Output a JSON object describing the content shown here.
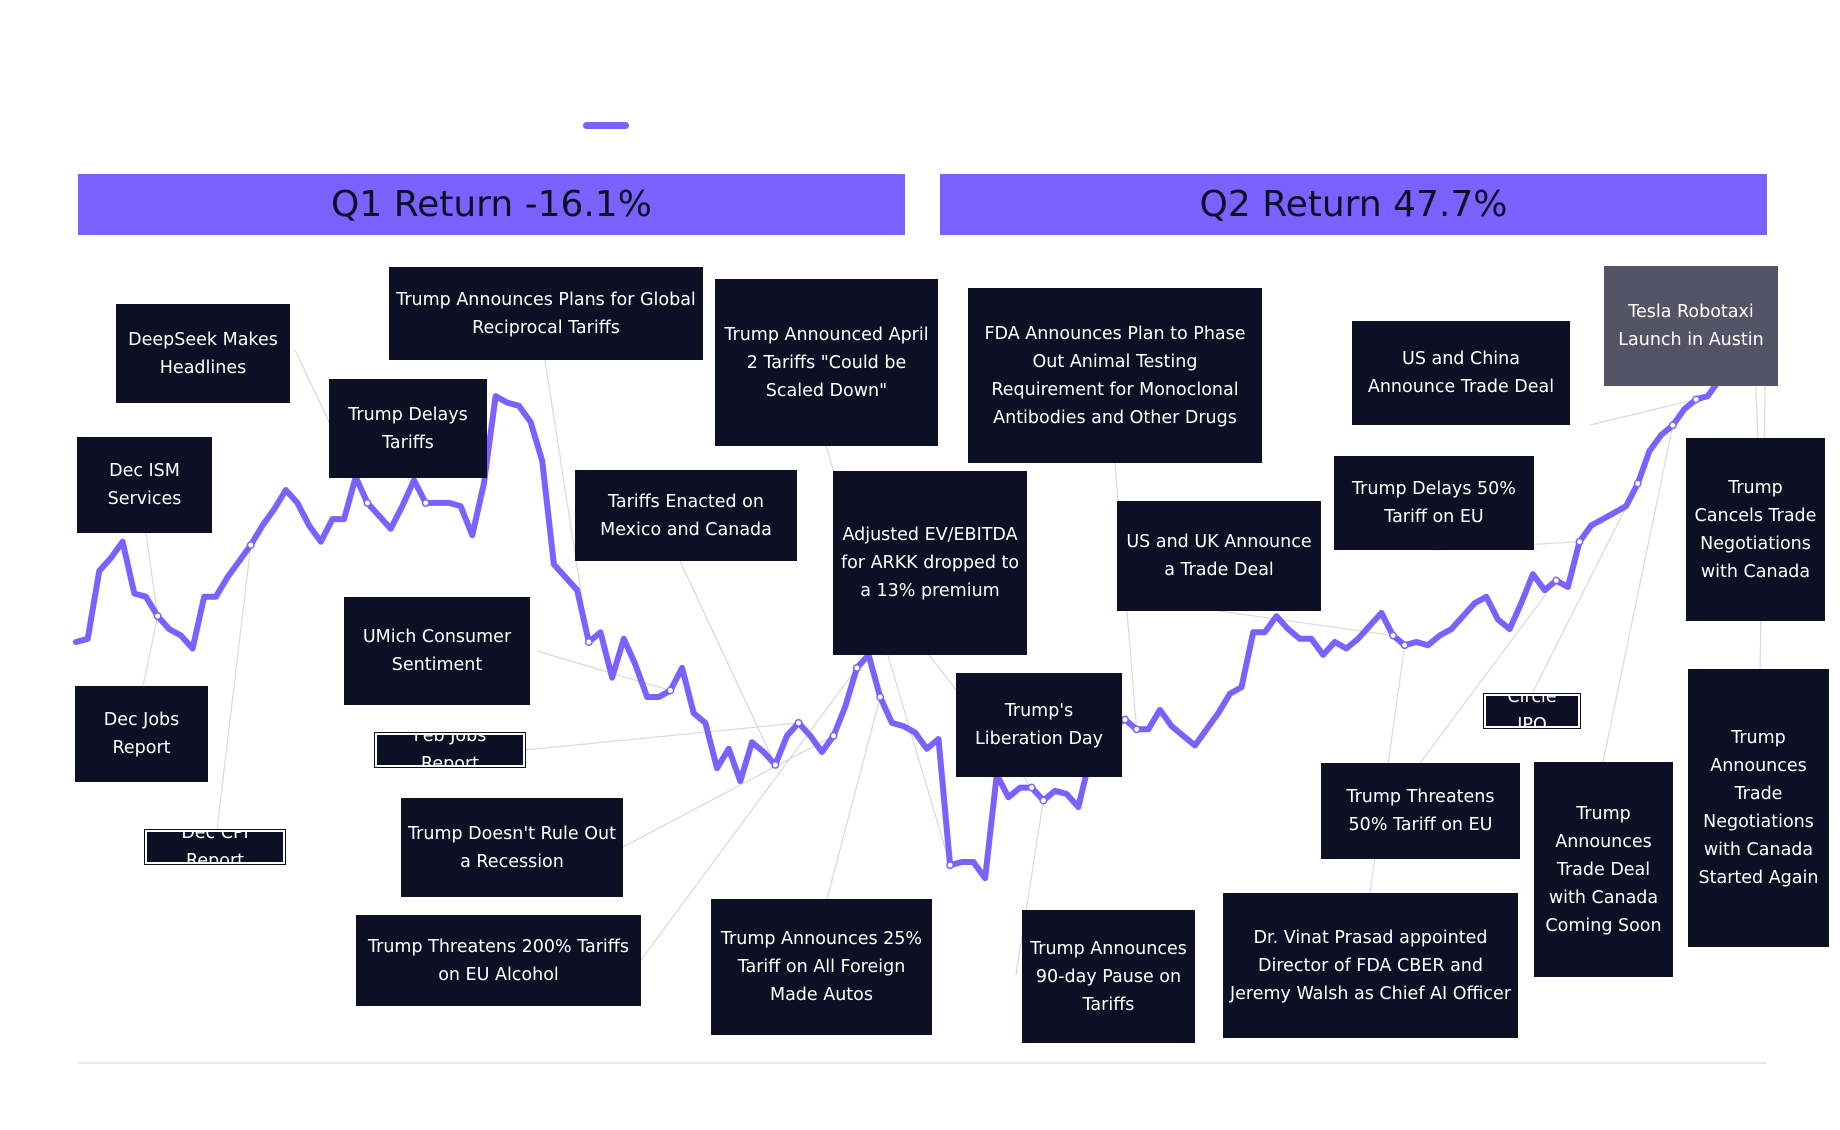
{
  "banners": {
    "q1": "Q1 Return -16.1%",
    "q2": "Q2 Return 47.7%"
  },
  "colors": {
    "line": "#7b61ff",
    "banner": "#7b61ff",
    "box": "#0d0f24",
    "box_highlight": "#555366",
    "connector": "#d9d9d9"
  },
  "events": {
    "dec_ism": "Dec ISM Services",
    "dec_jobs": "Dec Jobs Report",
    "dec_cpi": "Dec CPI Report",
    "deepseek": "DeepSeek Makes Headlines",
    "trump_delays_tariffs": "Trump Delays Tariffs",
    "global_reciprocal": "Trump Announces Plans for Global Reciprocal Tariffs",
    "umich": "UMich Consumer Sentiment",
    "feb_jobs": "Feb Jobs Report",
    "no_rule_out_recession": "Trump Doesn't Rule Out a Recession",
    "eu_alcohol": "Trump Threatens 200% Tariffs on EU Alcohol",
    "mexico_canada": "Tariffs Enacted on Mexico and Canada",
    "scaled_down": "Trump Announced April 2 Tariffs \"Could be Scaled Down\"",
    "ev_ebitda": "Adjusted EV/EBITDA for ARKK dropped to a 13% premium",
    "foreign_autos": "Trump Announces 25% Tariff on All Foreign Made Autos",
    "liberation_day": "Trump's Liberation Day",
    "pause_90": "Trump Announces 90-day Pause on Tariffs",
    "fda_animal": "FDA Announces Plan to Phase Out Animal Testing Requirement for Monoclonal Antibodies and Other Drugs",
    "us_uk": "US and UK Announce a Trade Deal",
    "prasad": "Dr. Vinat Prasad appointed Director of FDA CBER and Jeremy Walsh as Chief AI Officer",
    "us_china": "US and China Announce Trade Deal",
    "delays_50": "Trump Delays 50% Tariff on EU",
    "threatens_50": "Trump Threatens 50% Tariff on EU",
    "circle_ipo": "Circle IPO",
    "canada_deal_soon": "Trump Announces Trade Deal with Canada Coming Soon",
    "robotaxi": "Tesla Robotaxi Launch in Austin",
    "cancels_canada": "Trump Cancels Trade Negotiations with Canada",
    "canada_again": "Trump Announces Trade Negotiations with Canada Started Again"
  },
  "chart_data": {
    "type": "line",
    "title": "",
    "xlabel": "",
    "ylabel": "",
    "series": [
      {
        "values": [
          0.0,
          0.5,
          11.0,
          13.0,
          15.5,
          7.5,
          7.0,
          4.0,
          2.0,
          1.0,
          -1.0,
          7.0,
          7.0,
          10.0,
          12.5,
          15.0,
          18.0,
          20.5,
          23.5,
          21.5,
          18.0,
          15.5,
          19.0,
          19.0,
          25.5,
          21.5,
          19.5,
          17.5,
          21.0,
          25.0,
          21.5,
          21.5,
          21.5,
          21.0,
          16.5,
          24.5,
          38.0,
          37.0,
          36.5,
          34.0,
          28.0,
          12.0,
          10.0,
          8.0,
          0.0,
          1.5,
          -5.5,
          0.5,
          -3.5,
          -8.5,
          -8.5,
          -7.5,
          -4.0,
          -11.0,
          -12.5,
          -19.5,
          -16.5,
          -21.5,
          -15.5,
          -17.0,
          -19.0,
          -14.5,
          -12.5,
          -14.5,
          -17.0,
          -14.5,
          -10.0,
          -4.0,
          -2.0,
          -8.5,
          -12.5,
          -13.0,
          -14.0,
          -16.5,
          -15.0,
          -34.5,
          -34.0,
          -34.0,
          -36.5,
          -20.5,
          -24.0,
          -22.5,
          -22.5,
          -24.5,
          -23.0,
          -23.5,
          -25.5,
          -18.0,
          -13.0,
          -13.0,
          -12.0,
          -13.5,
          -13.5,
          -10.5,
          -13.0,
          -14.5,
          -16.0,
          -13.5,
          -11.0,
          -8.0,
          -7.0,
          1.5,
          1.5,
          4.0,
          2.0,
          0.5,
          0.5,
          -2.0,
          0.0,
          -1.0,
          0.5,
          2.5,
          4.5,
          1.0,
          -0.5,
          0.0,
          -0.5,
          1.0,
          2.0,
          4.0,
          6.0,
          7.0,
          3.5,
          2.0,
          6.0,
          10.5,
          8.0,
          9.5,
          8.5,
          15.5,
          18.0,
          19.0,
          20.0,
          21.0,
          24.5,
          29.5,
          32.0,
          33.5,
          36.0,
          37.5,
          38.0,
          40.5,
          43.5,
          42.0,
          44.5,
          46.5
        ]
      }
    ],
    "grid": false,
    "legend": "top-left"
  }
}
